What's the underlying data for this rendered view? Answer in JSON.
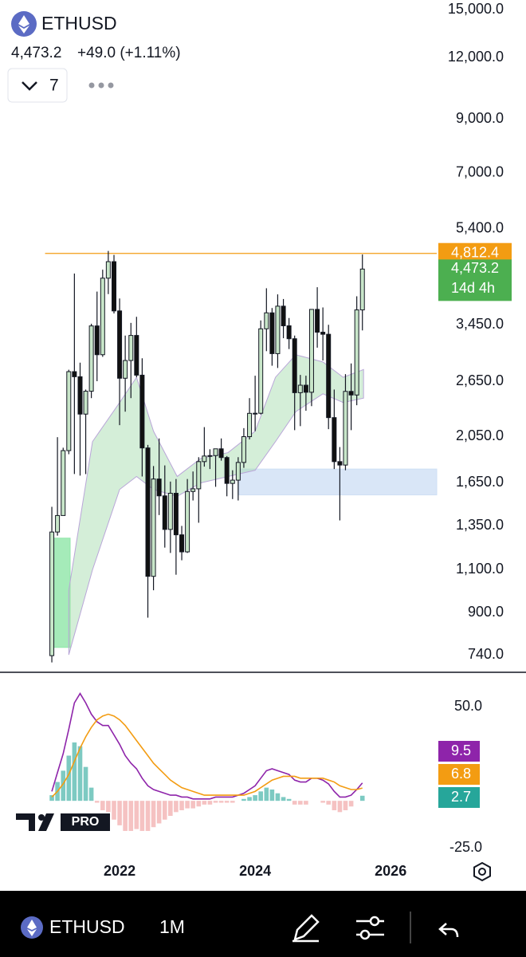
{
  "header": {
    "symbol": "ETHUSD",
    "price": "4,473.2",
    "change": "+49.0 (+1.11%)",
    "dropdown": "7"
  },
  "chart_data": [
    {
      "type": "candlestick",
      "log_scale": true,
      "xlim": [
        2020.235,
        2026.68
      ],
      "ylim": [
        682,
        15690
      ],
      "yticks": [
        {
          "value": 15000,
          "label": "15,000.0"
        },
        {
          "value": 12000,
          "label": "12,000.0"
        },
        {
          "value": 9000,
          "label": "9,000.0"
        },
        {
          "value": 7000,
          "label": "7,000.0"
        },
        {
          "value": 5400,
          "label": "5,400.0"
        },
        {
          "value": 3450,
          "label": "3,450.0"
        },
        {
          "value": 2650,
          "label": "2,650.0"
        },
        {
          "value": 2050,
          "label": "2,050.0"
        },
        {
          "value": 1650,
          "label": "1,650.0"
        },
        {
          "value": 1350,
          "label": "1,350.0"
        },
        {
          "value": 1100,
          "label": "1,100.0"
        },
        {
          "value": 900,
          "label": "900.0"
        },
        {
          "value": 740,
          "label": "740.0"
        }
      ],
      "up_color": "#c8e6c9",
      "down_color": "#111111",
      "x": [
        2021.0,
        2021.083,
        2021.167,
        2021.25,
        2021.333,
        2021.417,
        2021.5,
        2021.583,
        2021.667,
        2021.75,
        2021.833,
        2021.917,
        2022.0,
        2022.083,
        2022.167,
        2022.25,
        2022.333,
        2022.417,
        2022.5,
        2022.583,
        2022.667,
        2022.75,
        2022.833,
        2022.917,
        2023.0,
        2023.083,
        2023.167,
        2023.25,
        2023.333,
        2023.417,
        2023.5,
        2023.583,
        2023.667,
        2023.75,
        2023.833,
        2023.917,
        2024.0,
        2024.083,
        2024.167,
        2024.25,
        2024.333,
        2024.417,
        2024.5,
        2024.583,
        2024.667,
        2024.75,
        2024.833,
        2024.917,
        2025.0,
        2025.083,
        2025.167,
        2025.25,
        2025.333,
        2025.417,
        2025.5,
        2025.583
      ],
      "open": [
        737,
        1312,
        1417,
        1918,
        2772,
        2707,
        2274,
        2530,
        3431,
        3000,
        4287,
        4630,
        3680,
        2688,
        2920,
        3282,
        2727,
        1942,
        1067,
        1680,
        1553,
        1328,
        1572,
        1295,
        1196,
        1585,
        1605,
        1822,
        1870,
        1874,
        1934,
        1857,
        1646,
        1671,
        1815,
        2047,
        2282,
        2283,
        3385,
        3647,
        3015,
        3762,
        3433,
        3232,
        2513,
        2602,
        2518,
        3706,
        3332,
        3300,
        2237,
        1822,
        1793,
        2528,
        2486,
        3697
      ],
      "high": [
        1476,
        2042,
        1944,
        2797,
        4380,
        2891,
        2550,
        3466,
        4027,
        4460,
        4868,
        4778,
        3900,
        3280,
        3480,
        3580,
        2950,
        1970,
        1785,
        2030,
        1790,
        1660,
        1680,
        1350,
        1680,
        1740,
        1860,
        2140,
        1930,
        1930,
        2030,
        1870,
        1750,
        1860,
        2130,
        2450,
        2720,
        3520,
        4090,
        3730,
        3975,
        3890,
        3560,
        3280,
        2730,
        2720,
        3680,
        4110,
        3740,
        3450,
        2550,
        1950,
        2740,
        2880,
        3940,
        4788
      ],
      "low": [
        714,
        1290,
        1423,
        1886,
        1720,
        1707,
        1719,
        2450,
        2651,
        2970,
        3980,
        3636,
        2160,
        2300,
        2450,
        2700,
        1700,
        880,
        1000,
        1420,
        1220,
        1190,
        1075,
        1150,
        1190,
        1520,
        1370,
        1780,
        1760,
        1620,
        1830,
        1550,
        1530,
        1520,
        1770,
        2020,
        2100,
        2270,
        3050,
        2850,
        2820,
        3240,
        3080,
        2110,
        2150,
        2310,
        2360,
        3100,
        2920,
        2120,
        1760,
        1385,
        1750,
        2110,
        2370,
        3360
      ],
      "close": [
        1312,
        1417,
        1918,
        2772,
        2707,
        2274,
        2530,
        3431,
        3000,
        4287,
        4630,
        3680,
        2688,
        2920,
        3282,
        2727,
        1942,
        1067,
        1680,
        1553,
        1328,
        1572,
        1295,
        1196,
        1585,
        1605,
        1822,
        1870,
        1874,
        1934,
        1857,
        1646,
        1671,
        1815,
        2047,
        2282,
        2283,
        3385,
        3647,
        3015,
        3762,
        3433,
        3232,
        2513,
        2602,
        2518,
        3706,
        3332,
        3300,
        2237,
        1822,
        1793,
        2528,
        2486,
        3697,
        4473
      ],
      "band": {
        "color": "#9fd9a8",
        "x": [
          2021.25,
          2021.6,
          2022.0,
          2022.25,
          2022.5,
          2022.85,
          2023.2,
          2023.6,
          2024.0,
          2024.3,
          2024.6,
          2025.0,
          2025.3,
          2025.6
        ],
        "upper": [
          1000,
          2000,
          2400,
          2700,
          2100,
          1700,
          1850,
          1900,
          2100,
          2700,
          3000,
          2900,
          2700,
          2800
        ],
        "lower": [
          740,
          1100,
          1600,
          1700,
          1600,
          1550,
          1650,
          1700,
          1750,
          2000,
          2300,
          2500,
          2400,
          2450
        ]
      },
      "zones": [
        {
          "color": "#cfe0f5",
          "x": [
            2023.76,
            2026.68
          ],
          "y": [
            1560,
            1760
          ]
        },
        {
          "color": "#8ee6a8",
          "x": [
            2021.0,
            2021.27
          ],
          "y": [
            766,
            1275
          ]
        }
      ],
      "price_line": {
        "value": 4812.4,
        "label": "4,812.4",
        "color": "#f39c12",
        "x0": 2020.9
      },
      "last_price": {
        "value": 4473.2,
        "label": "4,473.2",
        "color": "#4caf50"
      },
      "countdown": "14d 4h"
    },
    {
      "type": "macd",
      "watermark": "PRO",
      "xlim": [
        2020.235,
        2026.68
      ],
      "xticks": [
        2022,
        2024,
        2026
      ],
      "ylim": [
        -30,
        67.4
      ],
      "yticks": [
        {
          "value": 50,
          "label": "50.0"
        },
        {
          "value": -25,
          "label": "-25.0"
        }
      ],
      "x": [
        2021.0,
        2021.083,
        2021.167,
        2021.25,
        2021.333,
        2021.417,
        2021.5,
        2021.583,
        2021.667,
        2021.75,
        2021.833,
        2021.917,
        2022.0,
        2022.083,
        2022.167,
        2022.25,
        2022.333,
        2022.417,
        2022.5,
        2022.583,
        2022.667,
        2022.75,
        2022.833,
        2022.917,
        2023.0,
        2023.083,
        2023.167,
        2023.25,
        2023.333,
        2023.417,
        2023.5,
        2023.583,
        2023.667,
        2023.75,
        2023.833,
        2023.917,
        2024.0,
        2024.083,
        2024.167,
        2024.25,
        2024.333,
        2024.417,
        2024.5,
        2024.583,
        2024.667,
        2024.75,
        2024.833,
        2024.917,
        2025.0,
        2025.083,
        2025.167,
        2025.25,
        2025.333,
        2025.417,
        2025.5,
        2025.583
      ],
      "series": [
        {
          "kind": "line",
          "color": "#8e24aa",
          "values": [
            5,
            15,
            25,
            38,
            52,
            57,
            52,
            46,
            42,
            40,
            40,
            35,
            30,
            24,
            20,
            17,
            12,
            8,
            6,
            5,
            4,
            3,
            3,
            2,
            2,
            1,
            1,
            1,
            1,
            2,
            2,
            2,
            2,
            3,
            4,
            6,
            8,
            12,
            16,
            17,
            16,
            15,
            14,
            11,
            10,
            10,
            12,
            12,
            11,
            9,
            5,
            2,
            2,
            3,
            6,
            9.5
          ]
        },
        {
          "kind": "line",
          "color": "#f39c12",
          "values": [
            2,
            5,
            9,
            14,
            21,
            28,
            34,
            39,
            43,
            45,
            46,
            45,
            43,
            40,
            36,
            32,
            28,
            24,
            20,
            17,
            14,
            11,
            9,
            7,
            6,
            5,
            4,
            3,
            3,
            3,
            3,
            3,
            3,
            3,
            3,
            4,
            5,
            7,
            9,
            11,
            12,
            13,
            13,
            13,
            12,
            12,
            12,
            12,
            12,
            11,
            10,
            8,
            7,
            6,
            6,
            6.8
          ]
        },
        {
          "kind": "histogram",
          "color": "#26a69a",
          "negative_color": "#ef9a9a",
          "values": [
            3,
            10,
            16,
            24,
            31,
            29,
            18,
            7,
            -1,
            -5,
            -6,
            -10,
            -13,
            -16,
            -16,
            -15,
            -16,
            -16,
            -14,
            -12,
            -10,
            -8,
            -6,
            -5,
            -4,
            -4,
            -3,
            -2,
            -2,
            -1,
            -1,
            -1,
            -1,
            0,
            1,
            2,
            3,
            5,
            7,
            6,
            4,
            2,
            1,
            -2,
            -2,
            -2,
            0,
            0,
            -1,
            -2,
            -5,
            -6,
            -5,
            -3,
            0,
            2.7
          ]
        }
      ]
    }
  ],
  "toolbar": {
    "symbol": "ETHUSD",
    "interval": "1M"
  }
}
